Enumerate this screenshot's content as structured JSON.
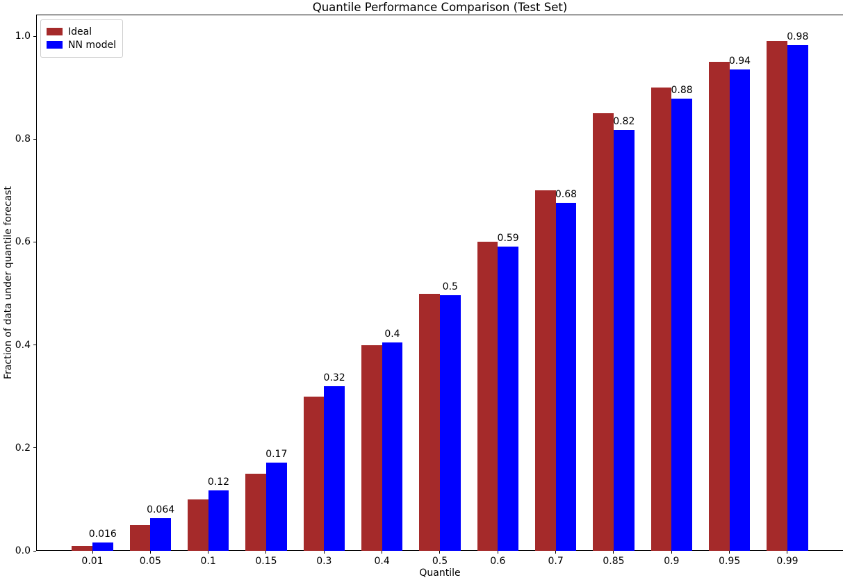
{
  "chart_data": {
    "type": "bar",
    "title": "Quantile Performance Comparison (Test Set)",
    "xlabel": "Quantile",
    "ylabel": "Fraction of data under quantile forecast",
    "categories": [
      "0.01",
      "0.05",
      "0.1",
      "0.15",
      "0.3",
      "0.4",
      "0.5",
      "0.6",
      "0.7",
      "0.85",
      "0.9",
      "0.95",
      "0.99"
    ],
    "series": [
      {
        "name": "Ideal",
        "color": "#a52a2a",
        "values": [
          0.01,
          0.05,
          0.1,
          0.15,
          0.3,
          0.4,
          0.5,
          0.6,
          0.7,
          0.85,
          0.9,
          0.95,
          0.99
        ]
      },
      {
        "name": "NN model",
        "color": "#0000ff",
        "values": [
          0.016,
          0.064,
          0.118,
          0.171,
          0.32,
          0.405,
          0.497,
          0.591,
          0.676,
          0.818,
          0.879,
          0.935,
          0.982
        ]
      }
    ],
    "bar_value_labels": {
      "series": "NN model",
      "values": [
        "0.016",
        "0.064",
        "0.12",
        "0.17",
        "0.32",
        "0.4",
        "0.5",
        "0.59",
        "0.68",
        "0.82",
        "0.88",
        "0.94",
        "0.98"
      ]
    },
    "yticks": [
      0.0,
      0.2,
      0.4,
      0.6,
      0.8,
      1.0
    ],
    "ylim": [
      0,
      1.042
    ],
    "legend": {
      "position": "upper left",
      "entries": [
        "Ideal",
        "NN model"
      ]
    },
    "grid": false,
    "background": "#ffffff",
    "text_color": "#000000"
  }
}
